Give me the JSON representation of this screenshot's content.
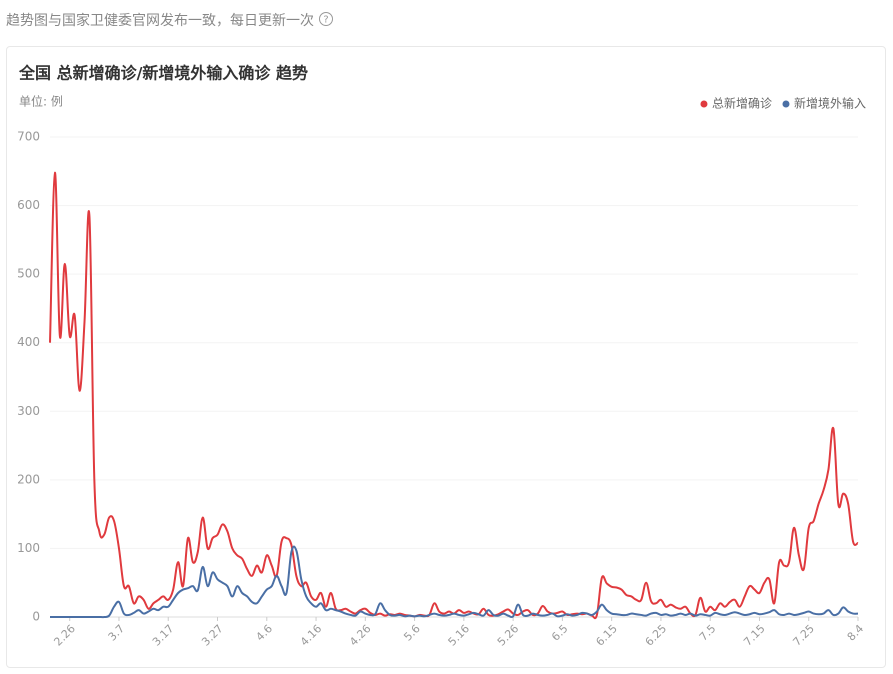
{
  "header": {
    "note": "趋势图与国家卫健委官网发布一致，每日更新一次"
  },
  "chart_data": {
    "type": "line",
    "title": "全国 总新增确诊/新增境外输入确诊 趋势",
    "unit_label": "单位: 例",
    "categories": [
      null,
      null,
      null,
      null,
      "2.26",
      null,
      null,
      null,
      null,
      null,
      null,
      null,
      null,
      null,
      "3.7",
      null,
      null,
      null,
      null,
      null,
      null,
      null,
      null,
      null,
      "3.17",
      null,
      null,
      null,
      null,
      null,
      null,
      null,
      null,
      null,
      "3.27",
      null,
      null,
      null,
      null,
      null,
      null,
      null,
      null,
      null,
      "4.6",
      null,
      null,
      null,
      null,
      null,
      null,
      null,
      null,
      null,
      "4.16",
      null,
      null,
      null,
      null,
      null,
      null,
      null,
      null,
      null,
      "4.26",
      null,
      null,
      null,
      null,
      null,
      null,
      null,
      null,
      null,
      "5.6",
      null,
      null,
      null,
      null,
      null,
      null,
      null,
      null,
      null,
      "5.16",
      null,
      null,
      null,
      null,
      null,
      null,
      null,
      null,
      null,
      "5.26",
      null,
      null,
      null,
      null,
      null,
      null,
      null,
      null,
      null,
      "6.5",
      null,
      null,
      null,
      null,
      null,
      null,
      null,
      null,
      null,
      "6.15",
      null,
      null,
      null,
      null,
      null,
      null,
      null,
      null,
      null,
      "6.25",
      null,
      null,
      null,
      null,
      null,
      null,
      null,
      null,
      null,
      "7.5",
      null,
      null,
      null,
      null,
      null,
      null,
      null,
      null,
      null,
      "7.15",
      null,
      null,
      null,
      null,
      null,
      null,
      null,
      null,
      null,
      "7.25",
      null,
      null,
      null,
      null,
      null,
      null,
      null,
      null,
      null,
      "8.4"
    ],
    "series": [
      {
        "name": "总新增确诊",
        "color": "#e03a3e",
        "values": [
          400,
          648,
          410,
          515,
          410,
          440,
          330,
          430,
          585,
          200,
          125,
          120,
          145,
          140,
          100,
          45,
          45,
          20,
          30,
          25,
          12,
          20,
          25,
          30,
          25,
          40,
          80,
          45,
          115,
          80,
          95,
          145,
          100,
          115,
          120,
          135,
          125,
          100,
          90,
          85,
          70,
          60,
          75,
          65,
          90,
          75,
          60,
          110,
          115,
          105,
          60,
          45,
          50,
          30,
          25,
          35,
          15,
          35,
          12,
          10,
          12,
          8,
          5,
          10,
          12,
          6,
          3,
          5,
          2,
          4,
          3,
          5,
          3,
          2,
          1,
          3,
          2,
          3,
          20,
          8,
          5,
          8,
          5,
          10,
          6,
          8,
          5,
          4,
          12,
          3,
          2,
          4,
          8,
          11,
          5,
          3,
          8,
          10,
          3,
          5,
          16,
          8,
          5,
          6,
          8,
          3,
          4,
          5,
          4,
          5,
          2,
          3,
          57,
          49,
          44,
          43,
          40,
          32,
          30,
          25,
          25,
          50,
          23,
          20,
          25,
          15,
          18,
          14,
          12,
          15,
          5,
          3,
          28,
          8,
          15,
          10,
          20,
          15,
          22,
          25,
          15,
          30,
          45,
          40,
          35,
          50,
          55,
          20,
          80,
          75,
          80,
          130,
          90,
          70,
          130,
          140,
          165,
          185,
          215,
          275,
          165,
          180,
          165,
          110,
          108
        ]
      },
      {
        "name": "新增境外输入",
        "color": "#4a6fa5",
        "values": [
          0,
          0,
          0,
          0,
          0,
          0,
          0,
          0,
          0,
          0,
          0,
          0,
          2,
          15,
          22,
          5,
          3,
          6,
          10,
          5,
          8,
          12,
          10,
          15,
          15,
          25,
          35,
          40,
          42,
          45,
          39,
          73,
          45,
          65,
          55,
          50,
          45,
          30,
          45,
          35,
          30,
          22,
          20,
          30,
          40,
          45,
          60,
          45,
          35,
          95,
          97,
          55,
          30,
          20,
          15,
          20,
          10,
          12,
          10,
          8,
          5,
          3,
          2,
          8,
          5,
          3,
          4,
          20,
          10,
          3,
          2,
          3,
          1,
          2,
          1,
          2,
          1,
          3,
          5,
          3,
          2,
          3,
          5,
          3,
          2,
          4,
          6,
          4,
          2,
          10,
          3,
          2,
          5,
          2,
          1,
          18,
          3,
          2,
          5,
          3,
          2,
          3,
          5,
          1,
          2,
          4,
          2,
          3,
          6,
          5,
          3,
          8,
          18,
          10,
          5,
          4,
          3,
          3,
          5,
          4,
          3,
          2,
          5,
          6,
          3,
          4,
          2,
          3,
          5,
          3,
          5,
          2,
          4,
          3,
          2,
          6,
          4,
          3,
          5,
          7,
          5,
          3,
          4,
          6,
          4,
          5,
          7,
          10,
          4,
          3,
          5,
          3,
          4,
          6,
          8,
          5,
          4,
          5,
          10,
          3,
          5,
          14,
          8,
          5,
          5
        ]
      }
    ],
    "ylim": [
      0,
      700
    ],
    "yticks": [
      0,
      100,
      200,
      300,
      400,
      500,
      600,
      700
    ],
    "grid": true,
    "legend": "top-right"
  }
}
